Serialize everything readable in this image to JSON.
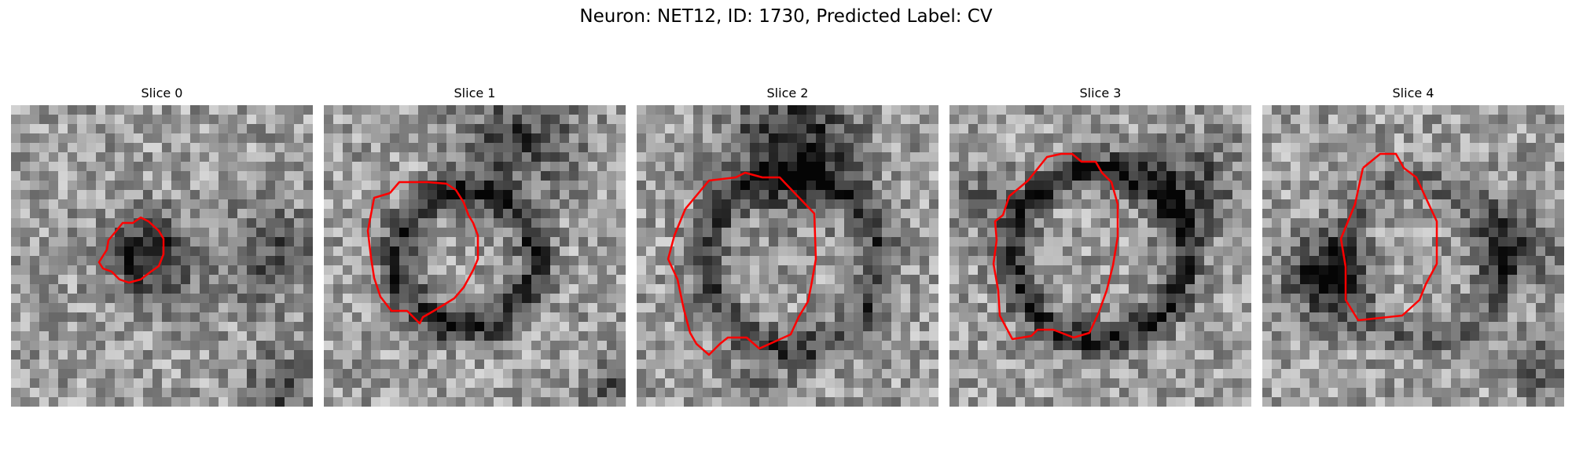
{
  "figure": {
    "title": "Neuron: NET12, ID: 1730, Predicted Label: CV",
    "contour_color": "#ff0000"
  },
  "slices": [
    {
      "label": "Slice 0"
    },
    {
      "label": "Slice 1"
    },
    {
      "label": "Slice 2"
    },
    {
      "label": "Slice 3"
    },
    {
      "label": "Slice 4"
    }
  ]
}
